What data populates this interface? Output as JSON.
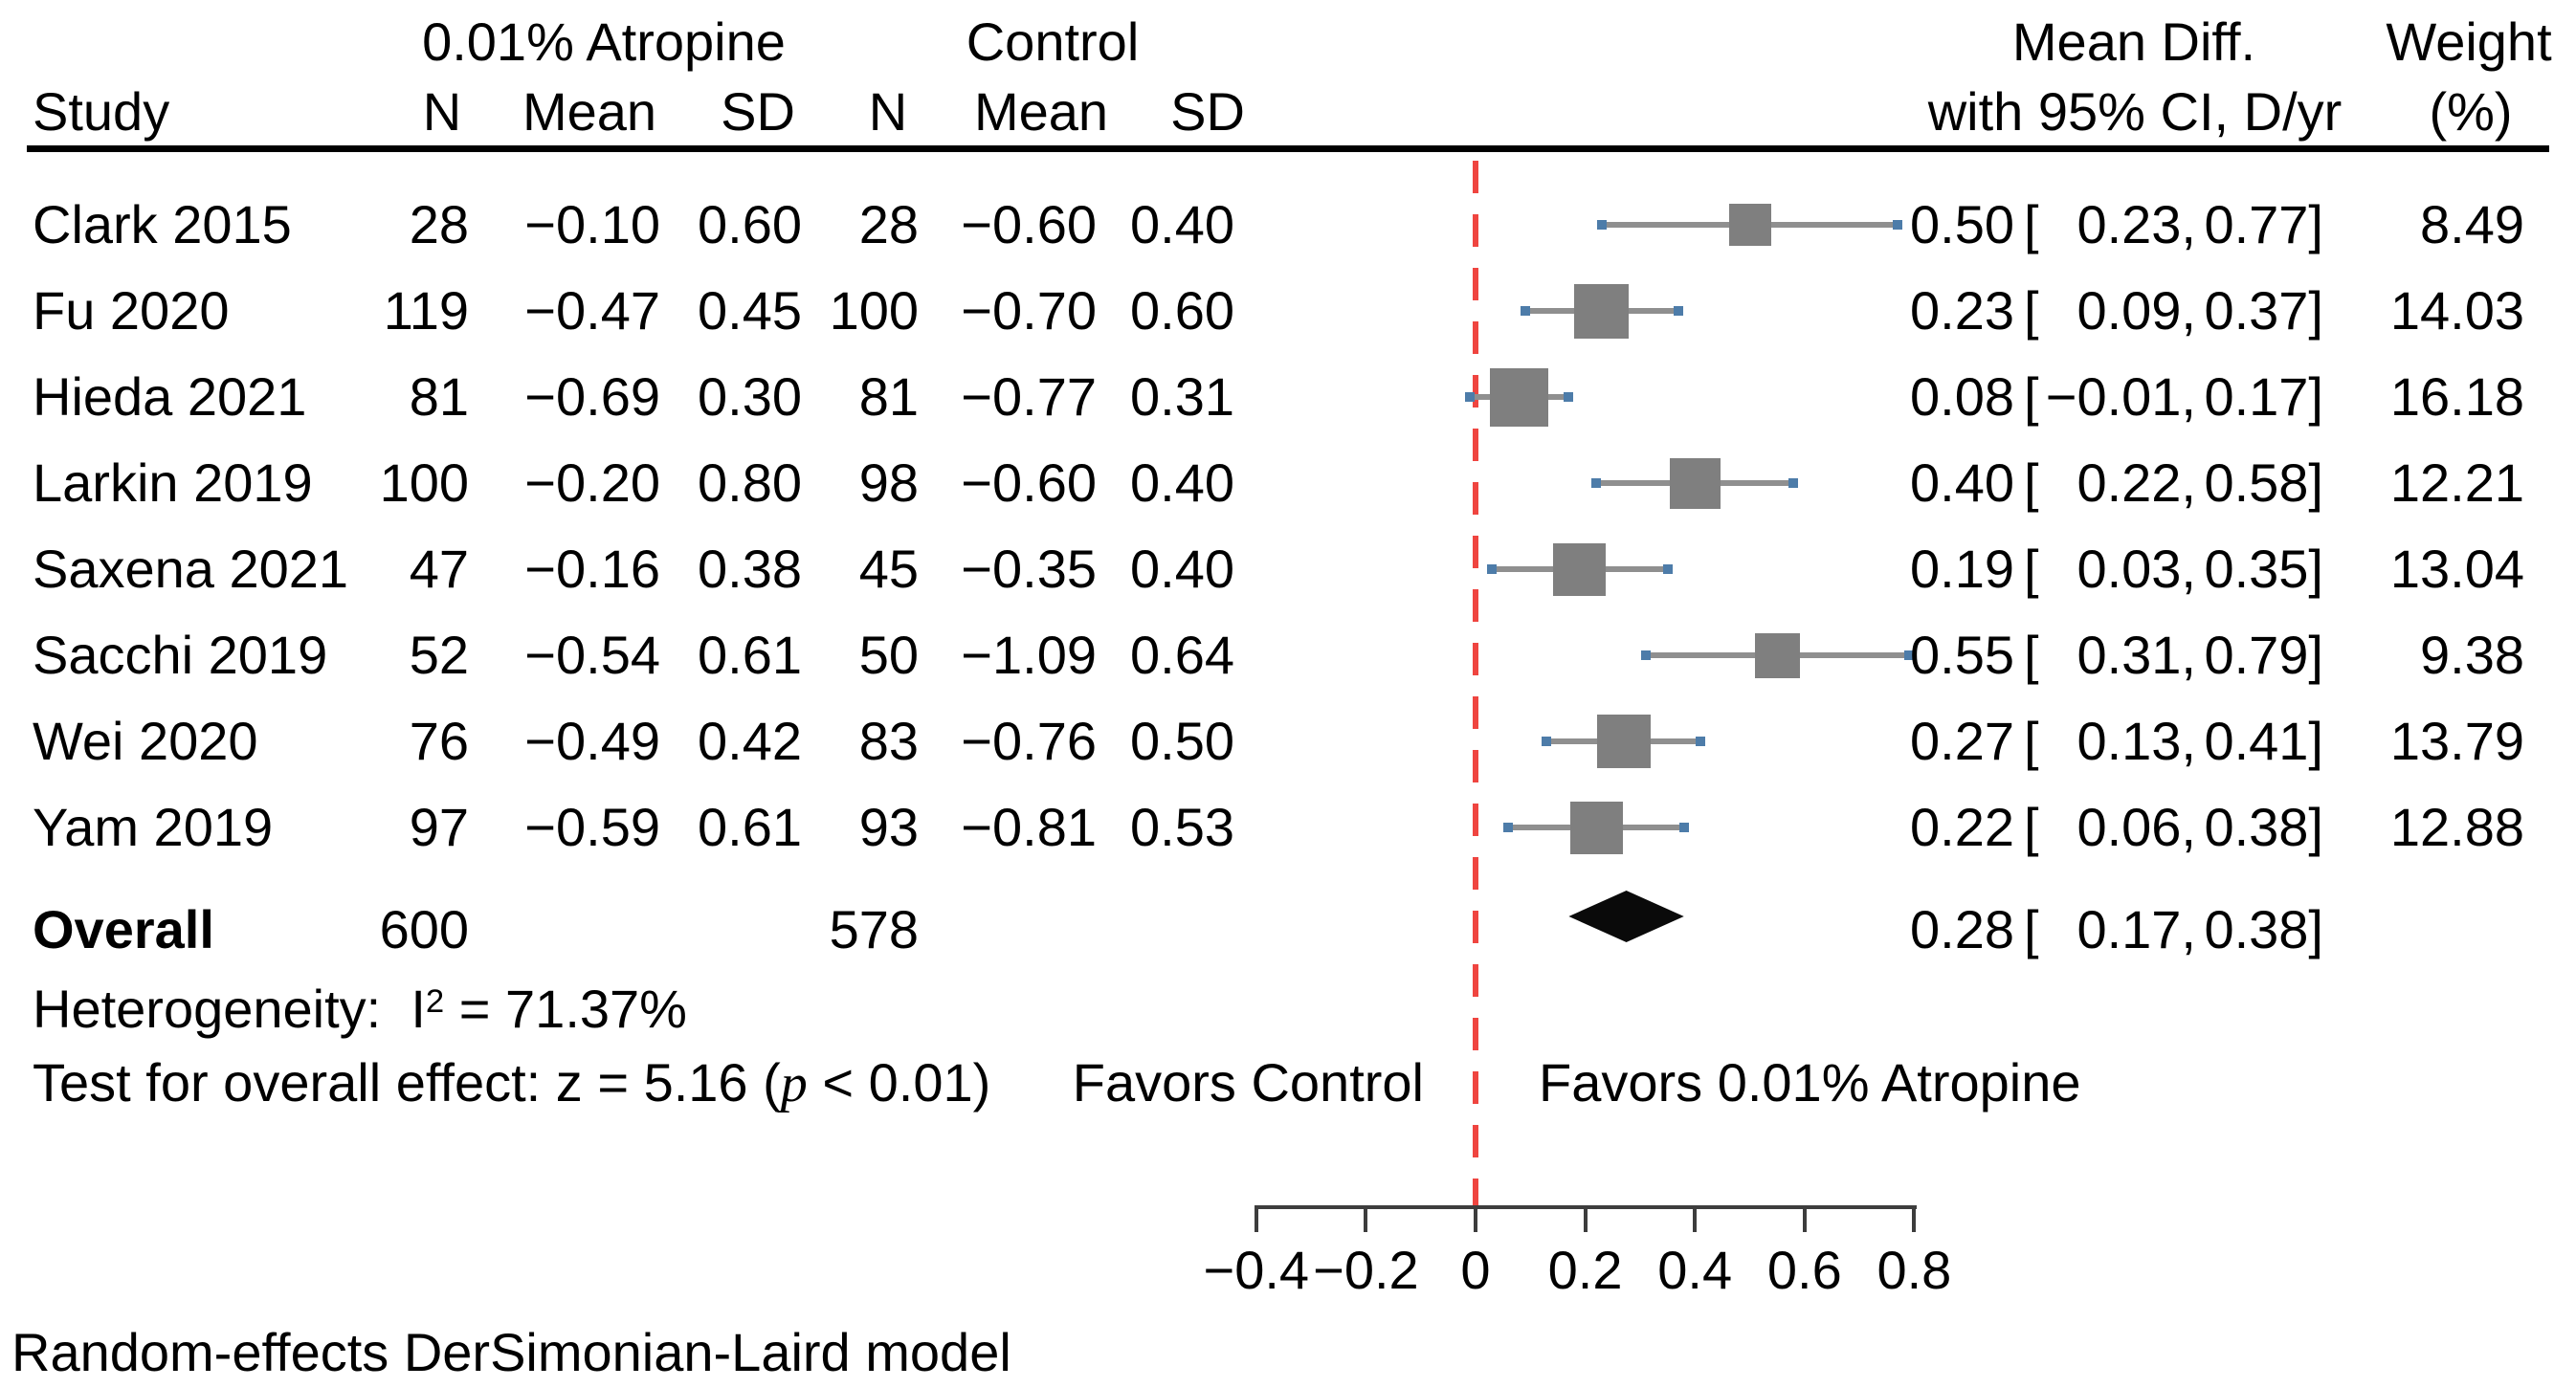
{
  "header": {
    "group_treatment": "0.01% Atropine",
    "group_control": "Control",
    "study": "Study",
    "n": "N",
    "mean": "Mean",
    "sd": "SD",
    "effect_line1": "Mean Diff.",
    "effect_line2": "with 95% CI, D/yr",
    "weight_line1": "Weight",
    "weight_line2": "(%)"
  },
  "chart_data": {
    "type": "forest",
    "effect_measure": "Mean Diff. with 95% CI, D/yr",
    "xlim": [
      -0.4,
      0.8
    ],
    "zero_line": 0,
    "axis": {
      "ticks": [
        -0.4,
        -0.2,
        0,
        0.2,
        0.4,
        0.6,
        0.8
      ]
    },
    "ci_format": {
      "open": "[",
      "sep": ",",
      "close": "]"
    },
    "studies": [
      {
        "study": "Clark 2015",
        "n_t": 28,
        "mean_t": -0.1,
        "sd_t": 0.6,
        "n_c": 28,
        "mean_c": -0.6,
        "sd_c": 0.4,
        "est": 0.5,
        "lo": 0.23,
        "hi": 0.77,
        "weight": 8.49
      },
      {
        "study": "Fu 2020",
        "n_t": 119,
        "mean_t": -0.47,
        "sd_t": 0.45,
        "n_c": 100,
        "mean_c": -0.7,
        "sd_c": 0.6,
        "est": 0.23,
        "lo": 0.09,
        "hi": 0.37,
        "weight": 14.03
      },
      {
        "study": "Hieda 2021",
        "n_t": 81,
        "mean_t": -0.69,
        "sd_t": 0.3,
        "n_c": 81,
        "mean_c": -0.77,
        "sd_c": 0.31,
        "est": 0.08,
        "lo": -0.01,
        "hi": 0.17,
        "weight": 16.18
      },
      {
        "study": "Larkin 2019",
        "n_t": 100,
        "mean_t": -0.2,
        "sd_t": 0.8,
        "n_c": 98,
        "mean_c": -0.6,
        "sd_c": 0.4,
        "est": 0.4,
        "lo": 0.22,
        "hi": 0.58,
        "weight": 12.21
      },
      {
        "study": "Saxena 2021",
        "n_t": 47,
        "mean_t": -0.16,
        "sd_t": 0.38,
        "n_c": 45,
        "mean_c": -0.35,
        "sd_c": 0.4,
        "est": 0.19,
        "lo": 0.03,
        "hi": 0.35,
        "weight": 13.04
      },
      {
        "study": "Sacchi 2019",
        "n_t": 52,
        "mean_t": -0.54,
        "sd_t": 0.61,
        "n_c": 50,
        "mean_c": -1.09,
        "sd_c": 0.64,
        "est": 0.55,
        "lo": 0.31,
        "hi": 0.79,
        "weight": 9.38
      },
      {
        "study": "Wei 2020",
        "n_t": 76,
        "mean_t": -0.49,
        "sd_t": 0.42,
        "n_c": 83,
        "mean_c": -0.76,
        "sd_c": 0.5,
        "est": 0.27,
        "lo": 0.13,
        "hi": 0.41,
        "weight": 13.79
      },
      {
        "study": "Yam 2019",
        "n_t": 97,
        "mean_t": -0.59,
        "sd_t": 0.61,
        "n_c": 93,
        "mean_c": -0.81,
        "sd_c": 0.53,
        "est": 0.22,
        "lo": 0.06,
        "hi": 0.38,
        "weight": 12.88
      }
    ],
    "overall": {
      "label": "Overall",
      "n_t": 600,
      "n_c": 578,
      "est": 0.28,
      "lo": 0.17,
      "hi": 0.38
    },
    "annotations": {
      "favors_left": "Favors Control",
      "favors_right": "Favors 0.01% Atropine"
    }
  },
  "stats": {
    "het_prefix": "Heterogeneity:  I",
    "het_sup": "2",
    "het_rest": " = 71.37%",
    "test_prefix": "Test for overall effect: z = 5.16 (",
    "test_p": "p",
    "test_rest": " < 0.01)"
  },
  "labels": {
    "footer": "Random-effects DerSimonian-Laird model"
  },
  "colors": {
    "square": "#7f7f7f",
    "ci_line": "#8f8f8f",
    "cap": "#4d7ca9",
    "zero_line": "#ef4540",
    "axis": "#3d3d3d",
    "diamond": "#0a0a0a",
    "rule": "#000000"
  }
}
